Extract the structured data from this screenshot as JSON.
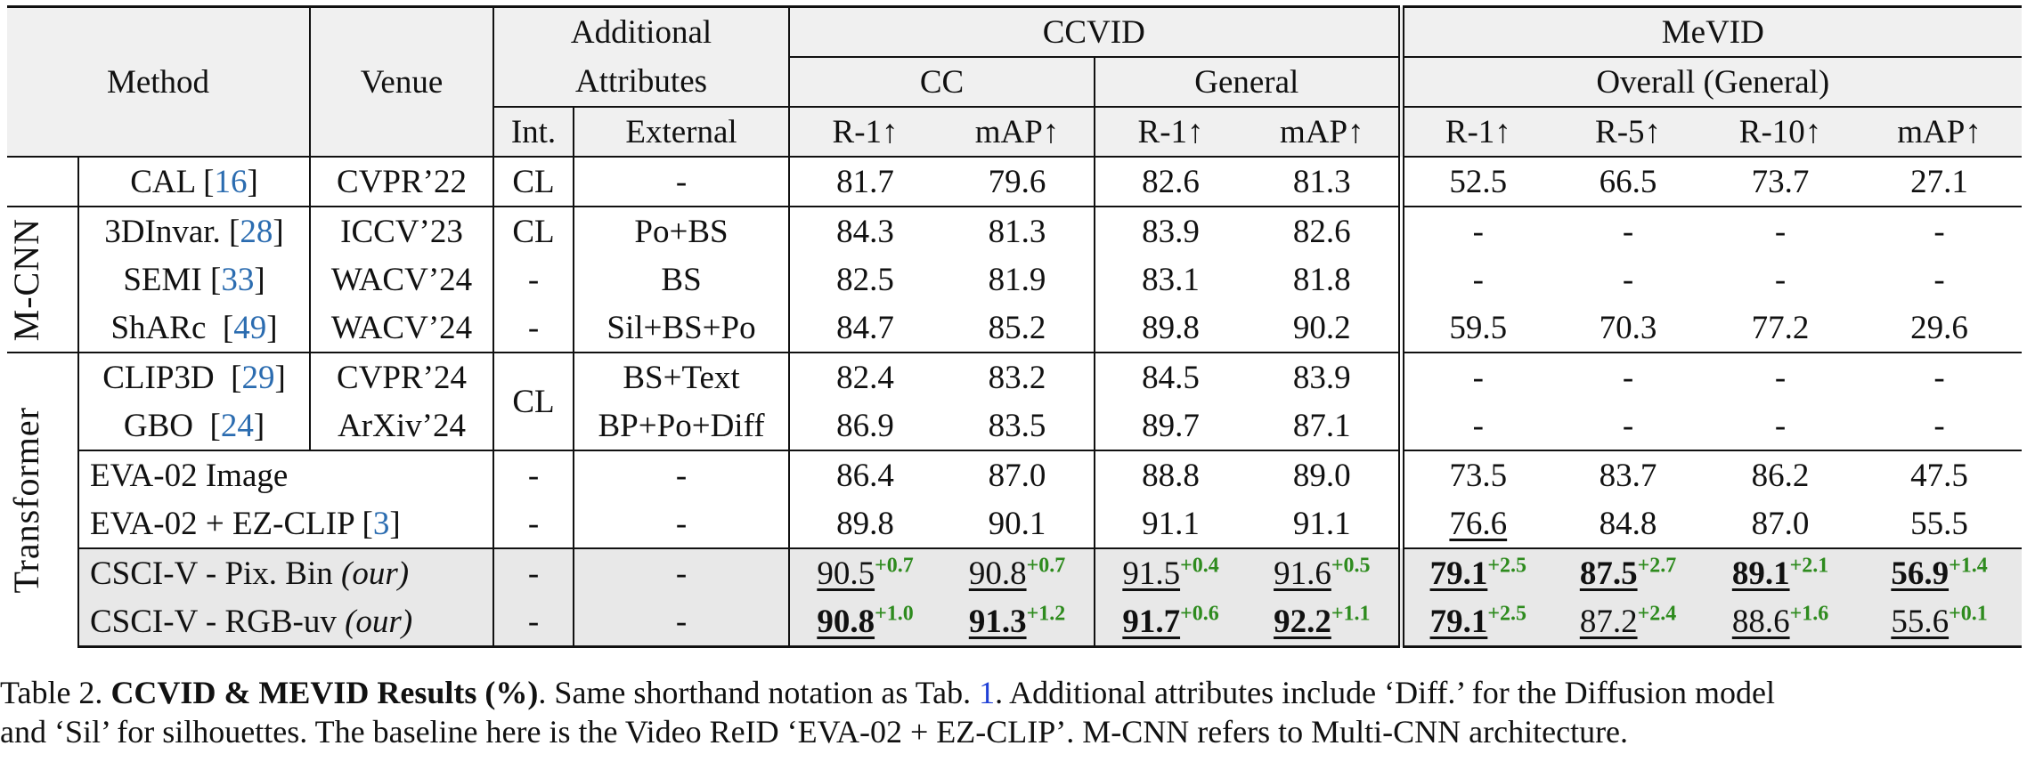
{
  "header": {
    "method": "Method",
    "venue": "Venue",
    "additional": "Additional",
    "attributes": "Attributes",
    "int": "Int.",
    "external": "External",
    "ccvid": "CCVID",
    "mevid": "MeVID",
    "cc": "CC",
    "general": "General",
    "overall": "Overall (General)",
    "r1": "R-1↑",
    "map": "mAP↑",
    "r5": "R-5↑",
    "r10": "R-10↑"
  },
  "groups": {
    "mcnn": "M-CNN",
    "transformer": "Transformer"
  },
  "rows": [
    {
      "method": "CAL ",
      "ref": "16",
      "venue": "CVPR’22",
      "int": "CL",
      "ext": "-",
      "cc_r1": "81.7",
      "cc_map": "79.6",
      "g_r1": "82.6",
      "g_map": "81.3",
      "m_r1": "52.5",
      "m_r5": "66.5",
      "m_r10": "73.7",
      "m_map": "27.1"
    },
    {
      "method": "3DInvar. ",
      "ref": "28",
      "venue": "ICCV’23",
      "int": "CL",
      "ext": "Po+BS",
      "cc_r1": "84.3",
      "cc_map": "81.3",
      "g_r1": "83.9",
      "g_map": "82.6",
      "m_r1": "-",
      "m_r5": "-",
      "m_r10": "-",
      "m_map": "-"
    },
    {
      "method": "SEMI ",
      "ref": "33",
      "venue": "WACV’24",
      "int": "-",
      "ext": "BS",
      "cc_r1": "82.5",
      "cc_map": "81.9",
      "g_r1": "83.1",
      "g_map": "81.8",
      "m_r1": "-",
      "m_r5": "-",
      "m_r10": "-",
      "m_map": "-"
    },
    {
      "method": "ShARc  ",
      "ref": "49",
      "venue": "WACV’24",
      "int": "-",
      "ext": "Sil+BS+Po",
      "cc_r1": "84.7",
      "cc_map": "85.2",
      "g_r1": "89.8",
      "g_map": "90.2",
      "m_r1": "59.5",
      "m_r5": "70.3",
      "m_r10": "77.2",
      "m_map": "29.6"
    },
    {
      "method": "CLIP3D  ",
      "ref": "29",
      "venue": "CVPR’24",
      "int": "",
      "ext": "BS+Text",
      "cc_r1": "82.4",
      "cc_map": "83.2",
      "g_r1": "84.5",
      "g_map": "83.9",
      "m_r1": "-",
      "m_r5": "-",
      "m_r10": "-",
      "m_map": "-"
    },
    {
      "method": "GBO  ",
      "ref": "24",
      "venue": "ArXiv’24",
      "int": "CL",
      "ext": "BP+Po+Diff",
      "cc_r1": "86.9",
      "cc_map": "83.5",
      "g_r1": "89.7",
      "g_map": "87.1",
      "m_r1": "-",
      "m_r5": "-",
      "m_r10": "-",
      "m_map": "-"
    },
    {
      "method": "EVA-02 Image",
      "int": "-",
      "ext": "-",
      "cc_r1": "86.4",
      "cc_map": "87.0",
      "g_r1": "88.8",
      "g_map": "89.0",
      "m_r1": "73.5",
      "m_r5": "83.7",
      "m_r10": "86.2",
      "m_map": "47.5"
    },
    {
      "method": "EVA-02 + EZ-CLIP ",
      "ref": "3",
      "int": "-",
      "ext": "-",
      "cc_r1": "89.8",
      "cc_map": "90.1",
      "g_r1": "91.1",
      "g_map": "91.1",
      "m_r1": "76.6",
      "m_r5": "84.8",
      "m_r10": "87.0",
      "m_map": "55.5"
    },
    {
      "method": "CSCI-V - Pix. Bin ",
      "method_it": "(our)",
      "int": "-",
      "ext": "-",
      "cc_r1": "90.5",
      "cc_r1_g": "+0.7",
      "cc_map": "90.8",
      "cc_map_g": "+0.7",
      "g_r1": "91.5",
      "g_r1_g": "+0.4",
      "g_map": "91.6",
      "g_map_g": "+0.5",
      "m_r1": "79.1",
      "m_r1_g": "+2.5",
      "m_r5": "87.5",
      "m_r5_g": "+2.7",
      "m_r10": "89.1",
      "m_r10_g": "+2.1",
      "m_map": "56.9",
      "m_map_g": "+1.4"
    },
    {
      "method": "CSCI-V - RGB-uv ",
      "method_it": "(our)",
      "int": "-",
      "ext": "-",
      "cc_r1": "90.8",
      "cc_r1_g": "+1.0",
      "cc_map": "91.3",
      "cc_map_g": "+1.2",
      "g_r1": "91.7",
      "g_r1_g": "+0.6",
      "g_map": "92.2",
      "g_map_g": "+1.1",
      "m_r1": "79.1",
      "m_r1_g": "+2.5",
      "m_r5": "87.2",
      "m_r5_g": "+2.4",
      "m_r10": "88.6",
      "m_r10_g": "+1.6",
      "m_map": "55.6",
      "m_map_g": "+0.1"
    }
  ],
  "caption": {
    "label": "Table 2. ",
    "title": "CCVID & MEVID Results (%)",
    "text1": ". Same shorthand notation as Tab. ",
    "ref": "1",
    "text2": ". Additional attributes include ‘Diff.’ for the Diffusion model",
    "line2": "and ‘Sil’ for silhouettes. The baseline here is the Video ReID ‘EVA-02 + EZ-CLIP’. M-CNN refers to Multi-CNN architecture."
  }
}
